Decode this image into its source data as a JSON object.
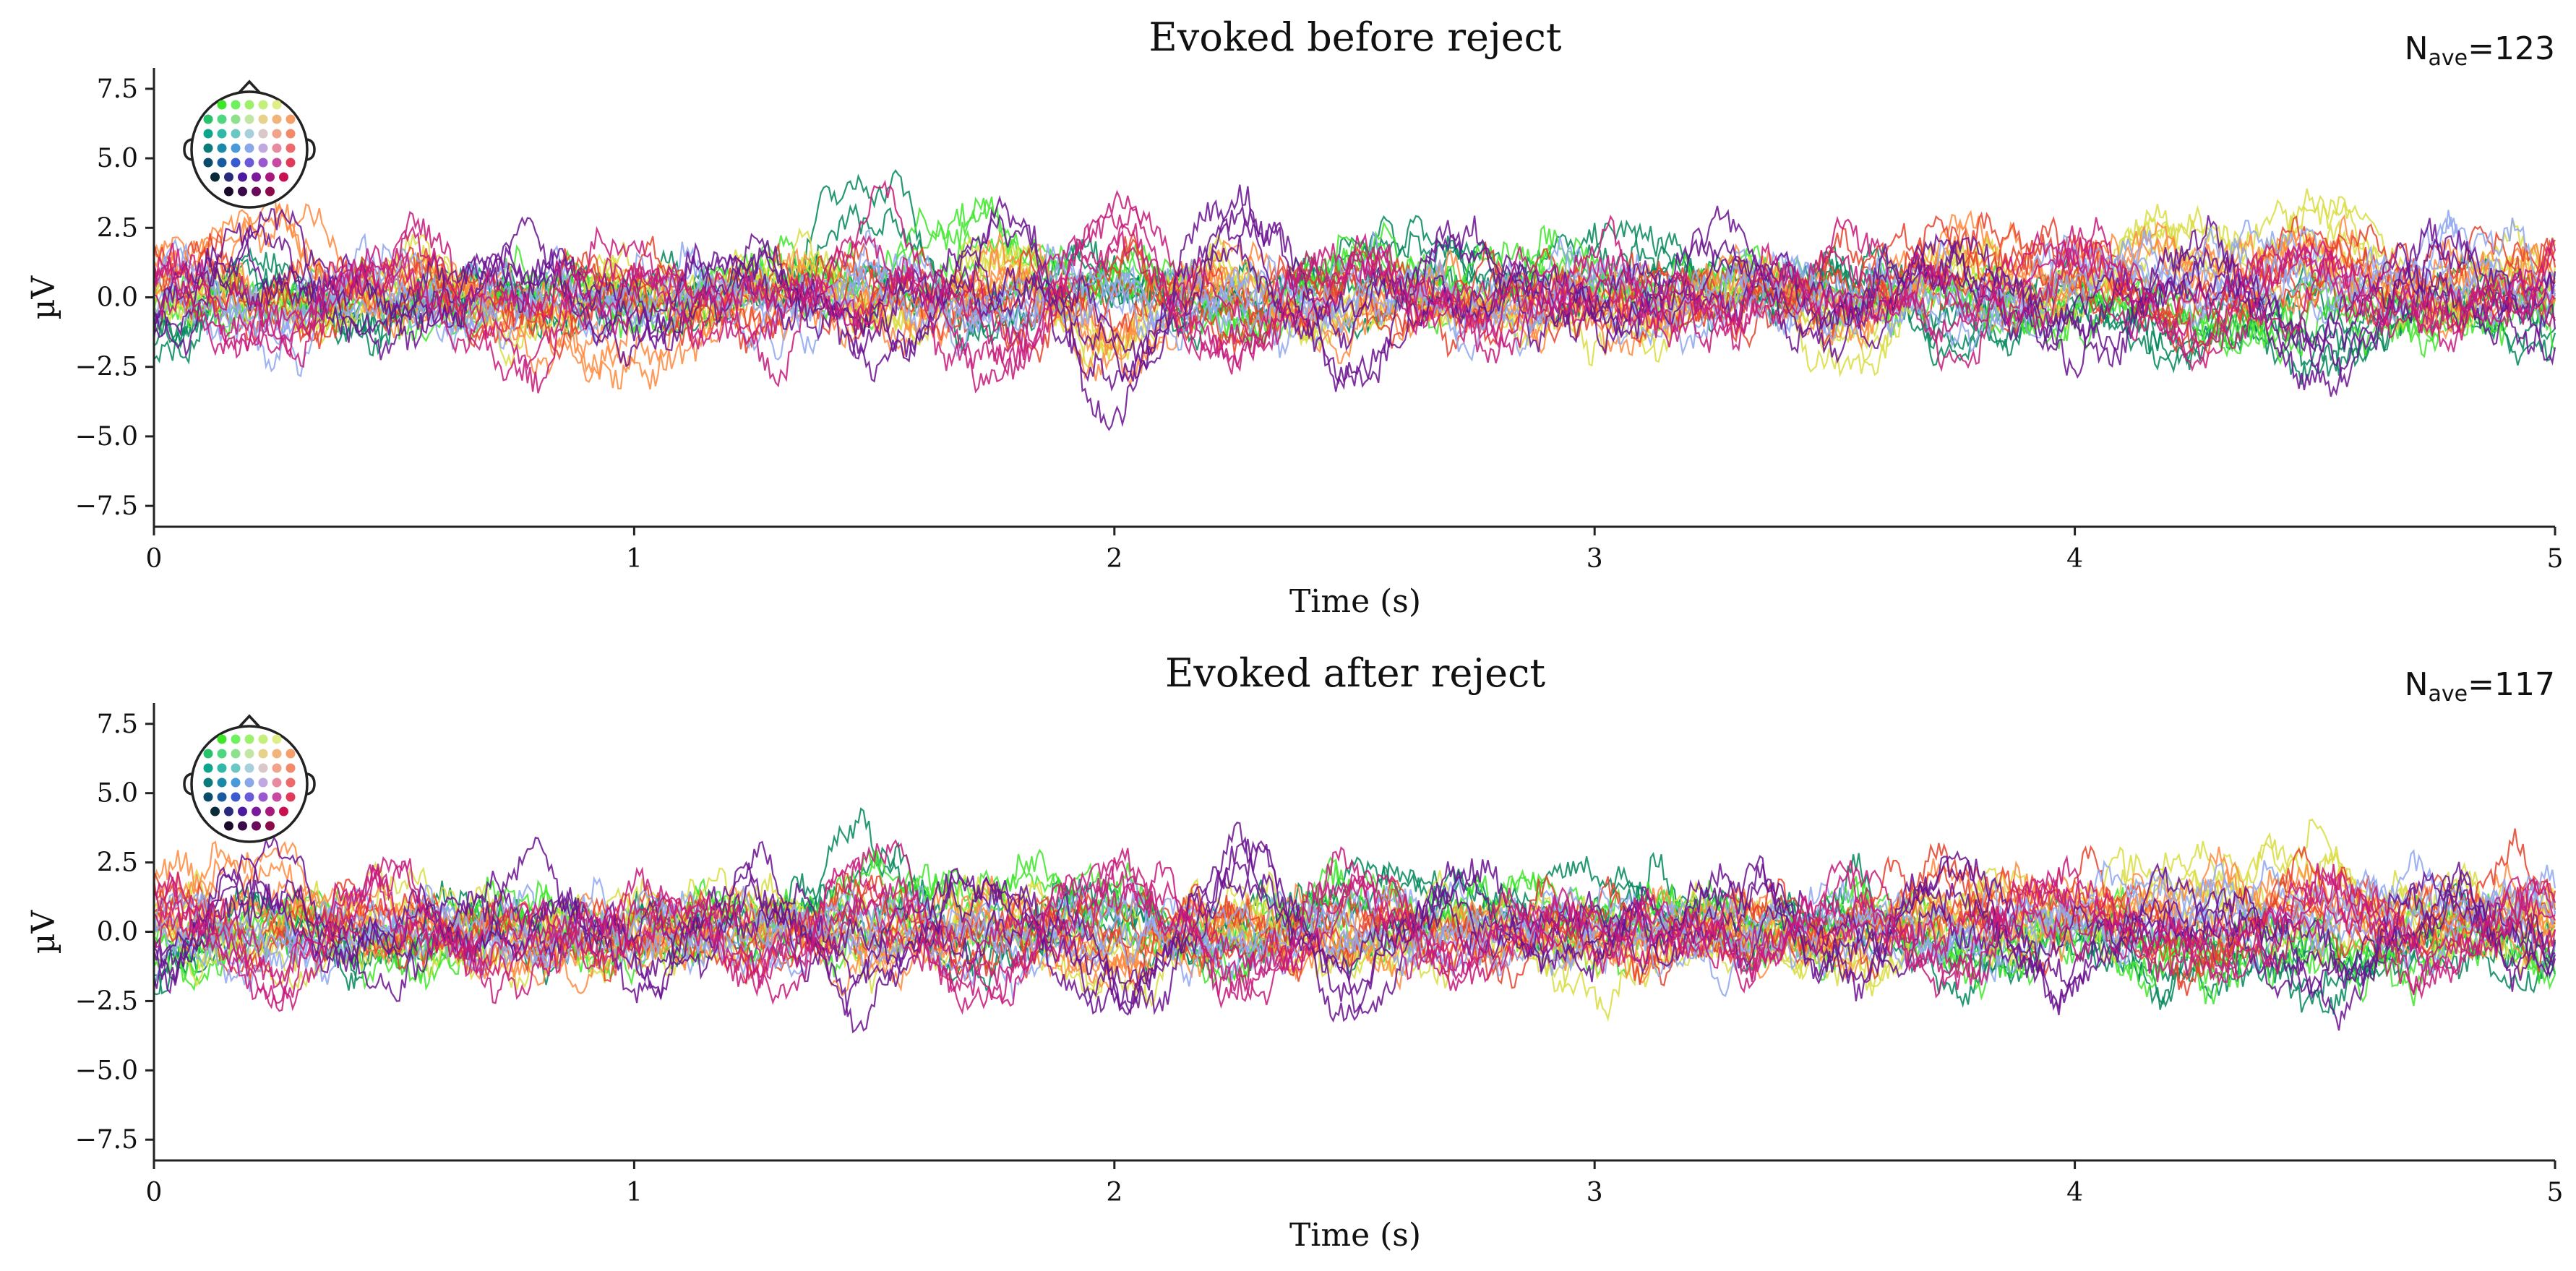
{
  "chart_data": [
    {
      "type": "line",
      "title": "Evoked before reject",
      "annotation": {
        "prefix": "N",
        "subscript": "ave",
        "suffix": "=123"
      },
      "xlabel": "Time (s)",
      "ylabel": "µV",
      "xlim": [
        0,
        5
      ],
      "ylim": [
        -8.25,
        8.25
      ],
      "xticks": [
        0,
        1,
        2,
        3,
        4,
        5
      ],
      "xtick_labels": [
        "0",
        "1",
        "2",
        "3",
        "4",
        "5"
      ],
      "yticks": [
        -7.5,
        -5.0,
        -2.5,
        0.0,
        2.5,
        5.0,
        7.5
      ],
      "ytick_labels": [
        "−7.5",
        "−5.0",
        "−2.5",
        "0.0",
        "2.5",
        "5.0",
        "7.5"
      ],
      "grid": false,
      "legend": "sensor-layout inset, top-left",
      "series": [
        {
          "color": "#00875a",
          "x": [
            0,
            0.25,
            0.5,
            0.75,
            1,
            1.25,
            1.5,
            1.75,
            2,
            2.25,
            2.5,
            2.75,
            3,
            3.25,
            3.5,
            3.75,
            4,
            4.25,
            4.5,
            4.75,
            5
          ],
          "y": [
            -1.8,
            0.6,
            -1.2,
            0.8,
            -0.9,
            1.4,
            3.6,
            -1.0,
            1.2,
            -0.8,
            2.0,
            1.5,
            2.8,
            1.3,
            1.0,
            -1.2,
            -0.5,
            -1.6,
            -2.0,
            -0.8,
            -1.7
          ]
        },
        {
          "color": "#3ee62a",
          "x": [
            0,
            0.25,
            0.5,
            0.75,
            1,
            1.25,
            1.5,
            1.75,
            2,
            2.25,
            2.5,
            2.75,
            3,
            3.25,
            3.5,
            3.75,
            4,
            4.25,
            4.5,
            4.75,
            5
          ],
          "y": [
            -1.2,
            0.4,
            -0.9,
            0.6,
            -0.7,
            1.1,
            1.8,
            2.5,
            0.8,
            -0.7,
            1.4,
            1.2,
            1.6,
            0.9,
            0.7,
            -0.5,
            -0.4,
            -0.9,
            -1.3,
            -0.7,
            -1.4
          ]
        },
        {
          "color": "#d9dd3f",
          "x": [
            0,
            0.25,
            0.5,
            0.75,
            1,
            1.25,
            1.5,
            1.75,
            2,
            2.25,
            2.5,
            2.75,
            3,
            3.25,
            3.5,
            3.75,
            4,
            4.25,
            4.5,
            4.75,
            5
          ],
          "y": [
            0.6,
            -0.8,
            1.2,
            -1.0,
            0.5,
            1.8,
            -0.6,
            1.1,
            -1.5,
            0.9,
            -1.2,
            0.4,
            -2.8,
            0.6,
            -2.3,
            1.0,
            0.8,
            2.6,
            2.9,
            1.0,
            1.4
          ]
        },
        {
          "color": "#ff8a3d",
          "x": [
            0,
            0.25,
            0.5,
            0.75,
            1,
            1.25,
            1.5,
            1.75,
            2,
            2.25,
            2.5,
            2.75,
            3,
            3.25,
            3.5,
            3.75,
            4,
            4.25,
            4.5,
            4.75,
            5
          ],
          "y": [
            1.8,
            2.6,
            0.4,
            -1.0,
            -5.0,
            0.6,
            -1.4,
            0.9,
            -1.8,
            0.7,
            -1.2,
            0.3,
            -1.6,
            0.5,
            -0.7,
            1.8,
            1.0,
            1.6,
            1.4,
            0.6,
            1.2
          ]
        },
        {
          "color": "#e8412b",
          "x": [
            0,
            0.25,
            0.5,
            0.75,
            1,
            1.25,
            1.5,
            1.75,
            2,
            2.25,
            2.5,
            2.75,
            3,
            3.25,
            3.5,
            3.75,
            4,
            4.25,
            4.5,
            4.75,
            5
          ],
          "y": [
            1.4,
            -0.6,
            0.9,
            -1.2,
            0.7,
            -0.5,
            1.0,
            -0.8,
            0.6,
            -0.7,
            0.5,
            -0.6,
            0.4,
            -0.5,
            0.8,
            2.1,
            1.2,
            -0.9,
            1.8,
            0.7,
            2.0
          ]
        },
        {
          "color": "#8fa7ee",
          "x": [
            0,
            0.25,
            0.5,
            0.75,
            1,
            1.25,
            1.5,
            1.75,
            2,
            2.25,
            2.5,
            2.75,
            3,
            3.25,
            3.5,
            3.75,
            4,
            4.25,
            4.5,
            4.75,
            5
          ],
          "y": [
            0.3,
            -0.9,
            0.5,
            -0.7,
            0.4,
            -0.6,
            0.6,
            -0.5,
            0.4,
            -0.6,
            0.3,
            -0.5,
            0.4,
            -0.4,
            0.5,
            -0.6,
            0.8,
            1.2,
            0.9,
            1.5,
            1.8
          ]
        },
        {
          "color": "#6a0f8f",
          "x": [
            0,
            0.25,
            0.5,
            0.75,
            1,
            1.25,
            1.5,
            1.75,
            2,
            2.25,
            2.5,
            2.75,
            3,
            3.25,
            3.5,
            3.75,
            4,
            4.25,
            4.5,
            4.75,
            5
          ],
          "y": [
            -0.8,
            2.2,
            -1.6,
            2.8,
            -2.2,
            2.4,
            -2.8,
            2.6,
            -3.4,
            3.0,
            -2.4,
            2.2,
            -1.8,
            3.2,
            -1.4,
            2.0,
            -2.0,
            1.6,
            -2.6,
            1.4,
            -1.0
          ]
        },
        {
          "color": "#c8177a",
          "x": [
            0,
            0.25,
            0.5,
            0.75,
            1,
            1.25,
            1.5,
            1.75,
            2,
            2.25,
            2.5,
            2.75,
            3,
            3.25,
            3.5,
            3.75,
            4,
            4.25,
            4.5,
            4.75,
            5
          ],
          "y": [
            1.0,
            -2.0,
            2.4,
            -2.6,
            2.2,
            -2.2,
            2.6,
            -2.8,
            3.2,
            -2.2,
            2.0,
            -1.6,
            1.4,
            -1.8,
            1.6,
            -1.2,
            1.8,
            -1.6,
            1.6,
            -1.4,
            1.4
          ]
        }
      ]
    },
    {
      "type": "line",
      "title": "Evoked after reject",
      "annotation": {
        "prefix": "N",
        "subscript": "ave",
        "suffix": "=117"
      },
      "xlabel": "Time (s)",
      "ylabel": "µV",
      "xlim": [
        0,
        5
      ],
      "ylim": [
        -8.25,
        8.25
      ],
      "xticks": [
        0,
        1,
        2,
        3,
        4,
        5
      ],
      "xtick_labels": [
        "0",
        "1",
        "2",
        "3",
        "4",
        "5"
      ],
      "yticks": [
        -7.5,
        -5.0,
        -2.5,
        0.0,
        2.5,
        5.0,
        7.5
      ],
      "ytick_labels": [
        "−7.5",
        "−5.0",
        "−2.5",
        "0.0",
        "2.5",
        "5.0",
        "7.5"
      ],
      "grid": false,
      "legend": "sensor-layout inset, top-left",
      "series": [
        {
          "color": "#00875a",
          "x": [
            0,
            0.25,
            0.5,
            0.75,
            1,
            1.25,
            1.5,
            1.75,
            2,
            2.25,
            2.5,
            2.75,
            3,
            3.25,
            3.5,
            3.75,
            4,
            4.25,
            4.5,
            4.75,
            5
          ],
          "y": [
            -1.5,
            0.5,
            -1.0,
            0.7,
            -0.8,
            1.2,
            2.8,
            -0.9,
            1.0,
            -0.7,
            1.8,
            1.4,
            2.4,
            1.2,
            0.9,
            -1.0,
            -0.5,
            -1.4,
            -1.8,
            -0.7,
            -1.5
          ]
        },
        {
          "color": "#3ee62a",
          "x": [
            0,
            0.25,
            0.5,
            0.75,
            1,
            1.25,
            1.5,
            1.75,
            2,
            2.25,
            2.5,
            2.75,
            3,
            3.25,
            3.5,
            3.75,
            4,
            4.25,
            4.5,
            4.75,
            5
          ],
          "y": [
            -1.0,
            0.4,
            -0.8,
            0.5,
            -0.6,
            1.0,
            1.6,
            2.2,
            0.7,
            -0.6,
            1.2,
            1.0,
            1.4,
            0.8,
            0.6,
            -0.5,
            -0.4,
            -0.8,
            -1.2,
            -0.6,
            -1.3
          ]
        },
        {
          "color": "#d9dd3f",
          "x": [
            0,
            0.25,
            0.5,
            0.75,
            1,
            1.25,
            1.5,
            1.75,
            2,
            2.25,
            2.5,
            2.75,
            3,
            3.25,
            3.5,
            3.75,
            4,
            4.25,
            4.5,
            4.75,
            5
          ],
          "y": [
            0.5,
            -0.7,
            1.0,
            -0.9,
            0.5,
            1.5,
            -0.6,
            1.0,
            -1.3,
            0.8,
            -1.1,
            0.4,
            -2.4,
            0.6,
            -2.0,
            0.9,
            0.7,
            2.2,
            2.4,
            0.9,
            1.2
          ]
        },
        {
          "color": "#ff8a3d",
          "x": [
            0,
            0.25,
            0.5,
            0.75,
            1,
            1.25,
            1.5,
            1.75,
            2,
            2.25,
            2.5,
            2.75,
            3,
            3.25,
            3.5,
            3.75,
            4,
            4.25,
            4.5,
            4.75,
            5
          ],
          "y": [
            1.6,
            2.2,
            0.4,
            -0.9,
            -1.6,
            0.5,
            -1.2,
            0.8,
            -1.6,
            0.6,
            -1.0,
            0.3,
            -1.4,
            0.5,
            -0.6,
            1.6,
            0.9,
            1.4,
            1.2,
            0.6,
            1.1
          ]
        },
        {
          "color": "#e8412b",
          "x": [
            0,
            0.25,
            0.5,
            0.75,
            1,
            1.25,
            1.5,
            1.75,
            2,
            2.25,
            2.5,
            2.75,
            3,
            3.25,
            3.5,
            3.75,
            4,
            4.25,
            4.5,
            4.75,
            5
          ],
          "y": [
            1.2,
            -0.5,
            0.8,
            -1.0,
            0.6,
            -0.5,
            0.9,
            -0.7,
            0.5,
            -0.6,
            0.5,
            -0.5,
            0.4,
            -0.5,
            0.7,
            1.9,
            1.1,
            -0.8,
            1.6,
            0.6,
            2.6
          ]
        },
        {
          "color": "#8fa7ee",
          "x": [
            0,
            0.25,
            0.5,
            0.75,
            1,
            1.25,
            1.5,
            1.75,
            2,
            2.25,
            2.5,
            2.75,
            3,
            3.25,
            3.5,
            3.75,
            4,
            4.25,
            4.5,
            4.75,
            5
          ],
          "y": [
            0.3,
            -0.8,
            0.5,
            -0.6,
            0.4,
            -0.5,
            0.5,
            -0.5,
            0.4,
            -0.5,
            0.3,
            -0.4,
            0.4,
            -0.4,
            0.5,
            -0.5,
            0.7,
            1.1,
            0.8,
            1.4,
            1.6
          ]
        },
        {
          "color": "#6a0f8f",
          "x": [
            0,
            0.25,
            0.5,
            0.75,
            1,
            1.25,
            1.5,
            1.75,
            2,
            2.25,
            2.5,
            2.75,
            3,
            3.25,
            3.5,
            3.75,
            4,
            4.25,
            4.5,
            4.75,
            5
          ],
          "y": [
            -0.7,
            2.0,
            -1.5,
            2.6,
            -2.0,
            2.2,
            -2.6,
            2.4,
            -3.2,
            2.8,
            -2.2,
            2.0,
            -1.6,
            3.0,
            -1.3,
            1.8,
            -1.8,
            1.5,
            -2.4,
            1.3,
            -0.9
          ]
        },
        {
          "color": "#c8177a",
          "x": [
            0,
            0.25,
            0.5,
            0.75,
            1,
            1.25,
            1.5,
            1.75,
            2,
            2.25,
            2.5,
            2.75,
            3,
            3.25,
            3.5,
            3.75,
            4,
            4.25,
            4.5,
            4.75,
            5
          ],
          "y": [
            0.9,
            -1.8,
            2.2,
            -2.4,
            2.0,
            -2.0,
            2.4,
            -2.6,
            3.0,
            -2.0,
            1.8,
            -1.5,
            1.3,
            -1.7,
            1.5,
            -1.1,
            1.7,
            -1.5,
            1.5,
            -1.3,
            1.3
          ]
        }
      ]
    }
  ],
  "sensor_inset": {
    "outline_color": "#222222",
    "rows": [
      [
        "#3ee62a",
        "#6ff05e",
        "#9cf06a",
        "#c4ef7c",
        "#e0ee8a"
      ],
      [
        "#27c26a",
        "#4fd67e",
        "#8ee08c",
        "#c2e6a4",
        "#e6d28a",
        "#f2b47a",
        "#f5a06a"
      ],
      [
        "#0aa58a",
        "#30b8a8",
        "#6cc6c4",
        "#a8d0dc",
        "#d8c8c8",
        "#f2a48a",
        "#f28a6a"
      ],
      [
        "#0a7a7a",
        "#1a8aa8",
        "#4a9ad8",
        "#8aa8e8",
        "#c0a8e0",
        "#e88aa0",
        "#ee6a6a"
      ],
      [
        "#0a4a6a",
        "#1a5aa0",
        "#3a5ad0",
        "#6a5ad8",
        "#9a58d0",
        "#c84aa0",
        "#e03a5a"
      ],
      [
        "#0a2a3a",
        "#2a2a7a",
        "#4a1aa0",
        "#7a1a9a",
        "#a8187a",
        "#c81050"
      ],
      [
        "#1a0a2a",
        "#3a0a4a",
        "#6a0a5a",
        "#8a0a4a"
      ]
    ]
  }
}
